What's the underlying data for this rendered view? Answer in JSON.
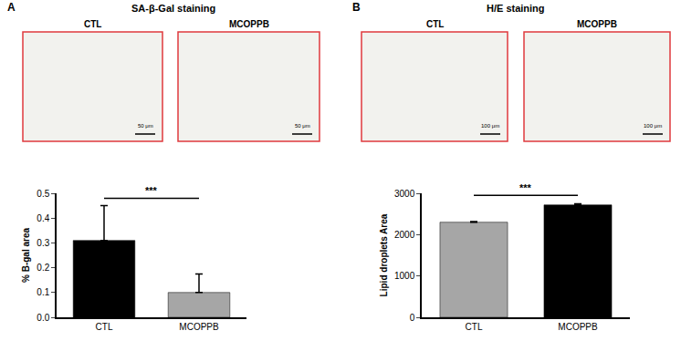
{
  "chart_data": [
    {
      "type": "bar",
      "panel": "A",
      "title": "SA-β-Gal staining",
      "images": [
        "CTL",
        "MCOPPB"
      ],
      "scale_bar": "50 μm",
      "categories": [
        "CTL",
        "MCOPPB"
      ],
      "values": [
        0.31,
        0.1
      ],
      "errors": [
        0.14,
        0.075
      ],
      "colors": [
        "#000000",
        "#a6a6a6"
      ],
      "ylabel": "% B-gal area",
      "ylim": [
        0,
        0.5
      ],
      "yticks": [
        {
          "value": 0,
          "label": "0.0"
        },
        0.1,
        0.2,
        0.3,
        0.4,
        0.5
      ],
      "significance": {
        "text": "***",
        "y": 0.48
      }
    },
    {
      "type": "bar",
      "panel": "B",
      "title": "H/E staining",
      "images": [
        "CTL",
        "MCOPPB"
      ],
      "scale_bar": "100 μm",
      "categories": [
        "CTL",
        "MCOPPB"
      ],
      "values": [
        2300,
        2720
      ],
      "errors": [
        15,
        25
      ],
      "colors": [
        "#a6a6a6",
        "#000000"
      ],
      "ylabel": "Lipid droplets Area",
      "ylim": [
        0,
        3000
      ],
      "yticks": [
        0,
        1000,
        2000,
        3000
      ],
      "significance": {
        "text": "***",
        "y": 2950
      }
    }
  ]
}
